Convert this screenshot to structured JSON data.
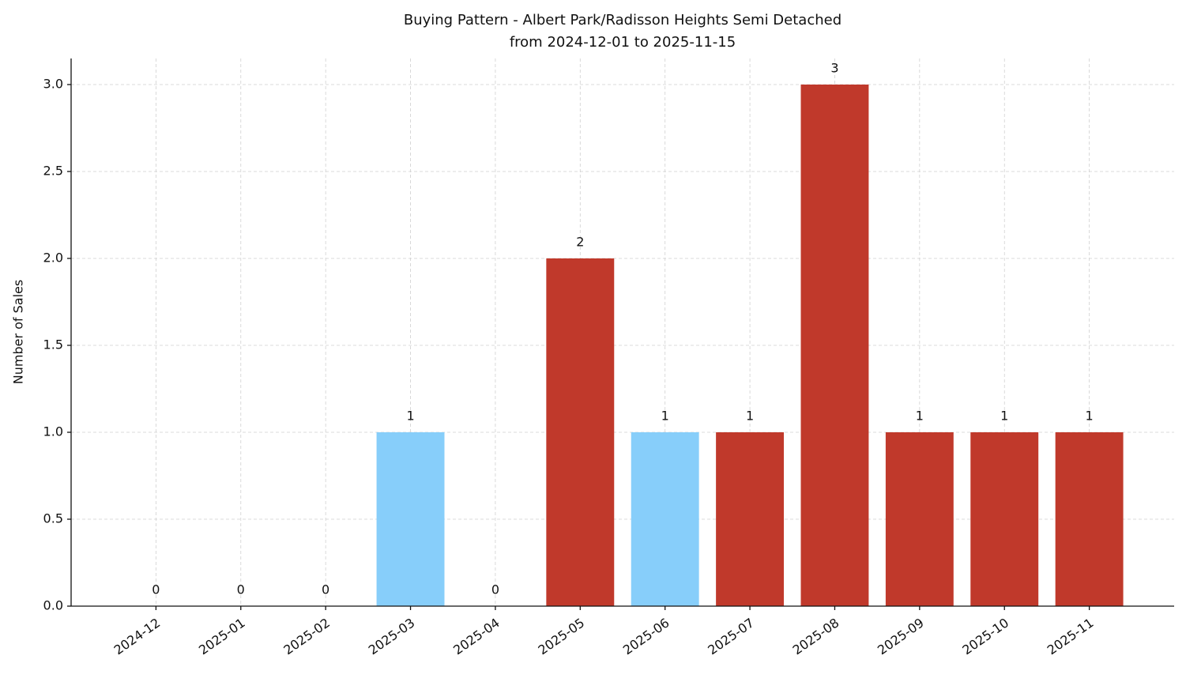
{
  "chart_data": {
    "type": "bar",
    "title": "Buying Pattern - Albert Park/Radisson Heights Semi Detached",
    "subtitle": "from 2024-12-01 to 2025-11-15",
    "y_label": "Number of Sales",
    "categories": [
      "2024-12",
      "2025-01",
      "2025-02",
      "2025-03",
      "2025-04",
      "2025-05",
      "2025-06",
      "2025-07",
      "2025-08",
      "2025-09",
      "2025-10",
      "2025-11"
    ],
    "values": [
      0,
      0,
      0,
      1,
      0,
      2,
      1,
      1,
      3,
      1,
      1,
      1
    ],
    "colors": [
      "#c0392b",
      "#c0392b",
      "#c0392b",
      "#87cefa",
      "#c0392b",
      "#c0392b",
      "#87cefa",
      "#c0392b",
      "#c0392b",
      "#c0392b",
      "#c0392b",
      "#c0392b"
    ],
    "ylim": [
      0,
      3.15
    ],
    "yticks": [
      {
        "value": 0,
        "label": "0.0"
      },
      0.5,
      {
        "value": 1,
        "label": "1.0"
      },
      1.5,
      {
        "value": 2,
        "label": "2.0"
      },
      2.5,
      {
        "value": 3,
        "label": "3.0"
      }
    ],
    "grid": true
  }
}
